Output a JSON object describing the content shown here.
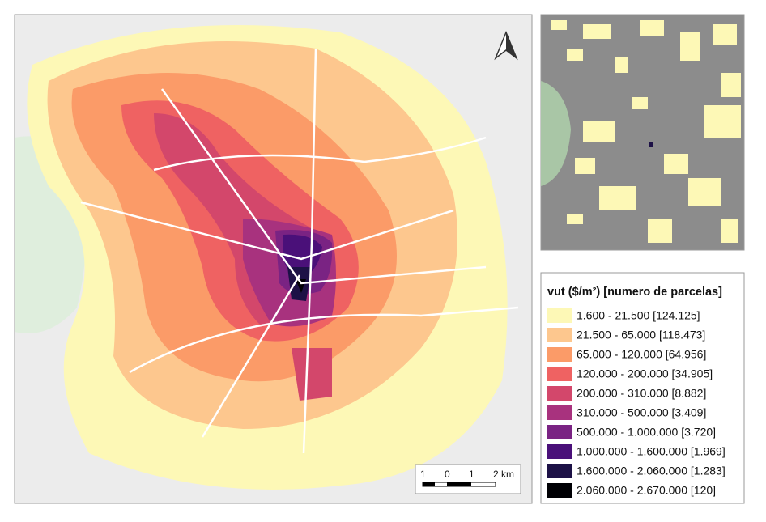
{
  "legend": {
    "title": "vut ($/m²) [numero de parcelas]",
    "items": [
      {
        "label": "1.600 - 21.500 [124.125]",
        "color": "#fdf8b6"
      },
      {
        "label": "21.500 - 65.000 [118.473]",
        "color": "#fdc78e"
      },
      {
        "label": "65.000 - 120.000 [64.956]",
        "color": "#fb9b68"
      },
      {
        "label": "120.000 - 200.000 [34.905]",
        "color": "#ef6262"
      },
      {
        "label": "200.000 - 310.000 [8.882]",
        "color": "#d3476b"
      },
      {
        "label": "310.000 - 500.000 [3.409]",
        "color": "#a8327e"
      },
      {
        "label": "500.000 - 1.000.000 [3.720]",
        "color": "#7a2383"
      },
      {
        "label": "1.000.000 - 1.600.000 [1.969]",
        "color": "#4a1079"
      },
      {
        "label": "1.600.000 - 2.060.000 [1.283]",
        "color": "#1d1146"
      },
      {
        "label": "2.060.000 - 2.670.000 [120]",
        "color": "#000004"
      }
    ]
  },
  "scale_bar": {
    "labels": [
      "1",
      "0",
      "1",
      "2 km"
    ]
  }
}
